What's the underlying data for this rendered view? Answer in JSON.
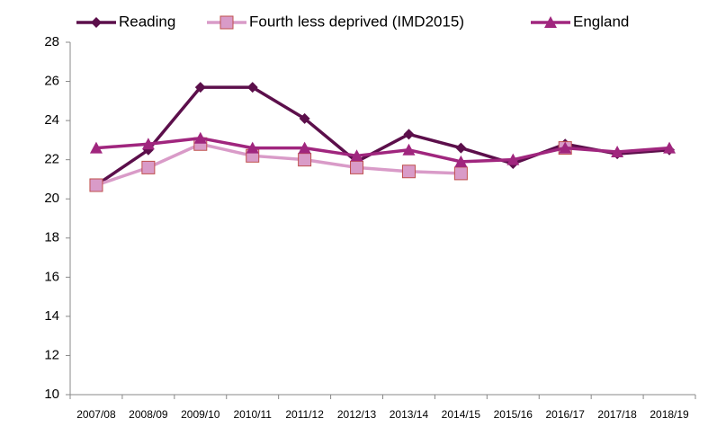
{
  "chart_data": {
    "type": "line",
    "categories": [
      "2007/08",
      "2008/09",
      "2009/10",
      "2010/11",
      "2011/12",
      "2012/13",
      "2013/14",
      "2014/15",
      "2015/16",
      "2016/17",
      "2017/18",
      "2018/19"
    ],
    "series": [
      {
        "name": "Reading",
        "color": "#5c0f4b",
        "marker": "diamond",
        "values": [
          20.7,
          22.5,
          25.7,
          25.7,
          24.1,
          21.9,
          23.3,
          22.6,
          21.8,
          22.8,
          22.3,
          22.5
        ]
      },
      {
        "name": "Fourth less deprived (IMD2015)",
        "color": "#d99bc8",
        "marker": "square",
        "values": [
          20.7,
          21.6,
          22.8,
          22.2,
          22.0,
          21.6,
          21.4,
          21.3,
          null,
          22.6,
          null,
          null
        ]
      },
      {
        "name": "England",
        "color": "#a0267e",
        "marker": "triangle",
        "values": [
          22.6,
          22.8,
          23.1,
          22.6,
          22.6,
          22.2,
          22.5,
          21.9,
          22.0,
          22.6,
          22.4,
          22.6
        ]
      }
    ],
    "ylim": [
      10,
      28
    ],
    "yticks": [
      10,
      12,
      14,
      16,
      18,
      20,
      22,
      24,
      26,
      28
    ],
    "grid": false
  }
}
